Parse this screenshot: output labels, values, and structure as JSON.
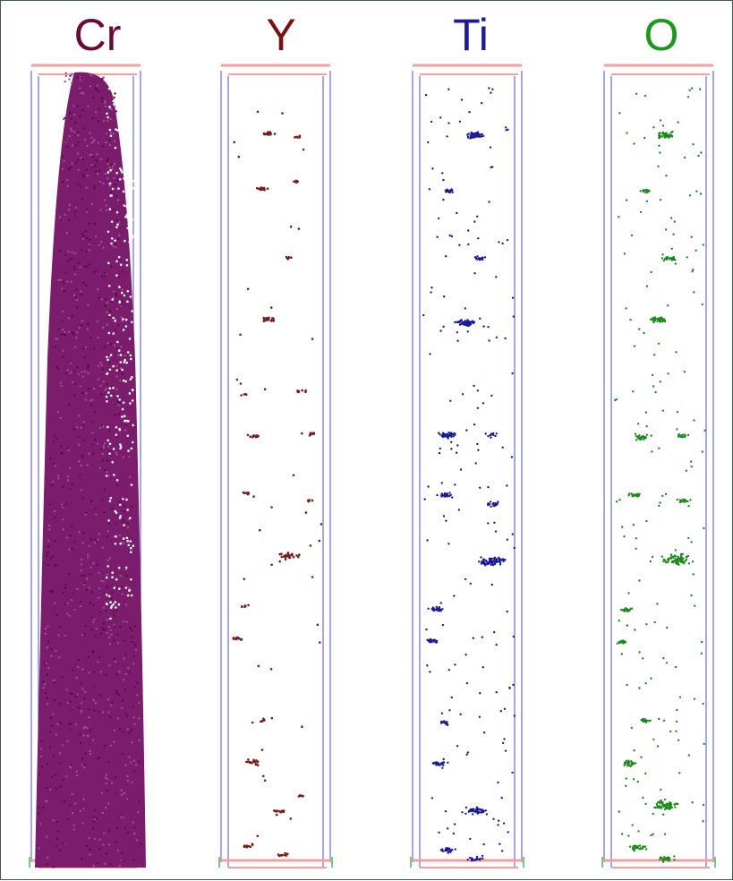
{
  "panels": [
    {
      "label": "Cr",
      "color": "#6a0a3a",
      "dot_color": "#7a1a6a"
    },
    {
      "label": "Y",
      "color": "#7a1010",
      "dot_color": "#7a1a1a"
    },
    {
      "label": "Ti",
      "color": "#1a1aa0",
      "dot_color": "#1a1a9a"
    },
    {
      "label": "O",
      "color": "#1a9a1a",
      "dot_color": "#1a8a1a"
    }
  ]
}
